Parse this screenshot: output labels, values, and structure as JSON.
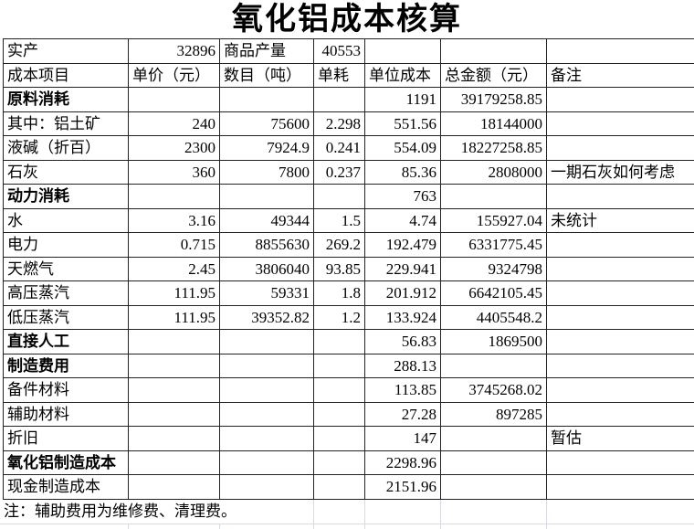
{
  "page": {
    "title": "氧化铝成本核算"
  },
  "summary_row": {
    "produced_label": "实产",
    "produced_value": "32896",
    "commodity_label": "商品产量",
    "commodity_value": "40553"
  },
  "columns": [
    "成本项目",
    "单价（元）",
    "数目（吨）",
    "单耗",
    "单位成本",
    "总金额（元）",
    "备注"
  ],
  "rows": [
    {
      "item": "原料消耗",
      "bold": true,
      "price": "",
      "qty": "",
      "use": "",
      "unit_cost": "1191",
      "total": "39179258.85",
      "note": ""
    },
    {
      "item": "其中：铝土矿",
      "bold": false,
      "price": "240",
      "qty": "75600",
      "use": "2.298",
      "unit_cost": "551.56",
      "total": "18144000",
      "note": ""
    },
    {
      "item": "液碱（折百）",
      "bold": false,
      "price": "2300",
      "qty": "7924.9",
      "use": "0.241",
      "unit_cost": "554.09",
      "total": "18227258.85",
      "note": ""
    },
    {
      "item": "石灰",
      "bold": false,
      "price": "360",
      "qty": "7800",
      "use": "0.237",
      "unit_cost": "85.36",
      "total": "2808000",
      "note": "一期石灰如何考虑"
    },
    {
      "item": "动力消耗",
      "bold": true,
      "price": "",
      "qty": "",
      "use": "",
      "unit_cost": "763",
      "total": "",
      "note": ""
    },
    {
      "item": "水",
      "bold": false,
      "price": "3.16",
      "qty": "49344",
      "use": "1.5",
      "unit_cost": "4.74",
      "total": "155927.04",
      "note": "未统计"
    },
    {
      "item": "电力",
      "bold": false,
      "price": "0.715",
      "qty": "8855630",
      "use": "269.2",
      "unit_cost": "192.479",
      "total": "6331775.45",
      "note": ""
    },
    {
      "item": "天燃气",
      "bold": false,
      "price": "2.45",
      "qty": "3806040",
      "use": "93.85",
      "unit_cost": "229.941",
      "total": "9324798",
      "note": ""
    },
    {
      "item": "高压蒸汽",
      "bold": false,
      "price": "111.95",
      "qty": "59331",
      "use": "1.8",
      "unit_cost": "201.912",
      "total": "6642105.45",
      "note": ""
    },
    {
      "item": "低压蒸汽",
      "bold": false,
      "price": "111.95",
      "qty": "39352.82",
      "use": "1.2",
      "unit_cost": "133.924",
      "total": "4405548.2",
      "note": ""
    },
    {
      "item": "直接人工",
      "bold": true,
      "price": "",
      "qty": "",
      "use": "",
      "unit_cost": "56.83",
      "total": "1869500",
      "note": ""
    },
    {
      "item": "制造费用",
      "bold": true,
      "price": "",
      "qty": "",
      "use": "",
      "unit_cost": "288.13",
      "total": "",
      "note": ""
    },
    {
      "item": "备件材料",
      "bold": false,
      "price": "",
      "qty": "",
      "use": "",
      "unit_cost": "113.85",
      "total": "3745268.02",
      "note": ""
    },
    {
      "item": "辅助材料",
      "bold": false,
      "price": "",
      "qty": "",
      "use": "",
      "unit_cost": "27.28",
      "total": "897285",
      "note": ""
    },
    {
      "item": "折旧",
      "bold": false,
      "price": "",
      "qty": "",
      "use": "",
      "unit_cost": "147",
      "total": "",
      "note": "暂估"
    },
    {
      "item": "氧化铝制造成本",
      "bold": true,
      "price": "",
      "qty": "",
      "use": "",
      "unit_cost": "2298.96",
      "total": "",
      "note": ""
    },
    {
      "item": "现金制造成本",
      "bold": false,
      "price": "",
      "qty": "",
      "use": "",
      "unit_cost": "2151.96",
      "total": "",
      "note": ""
    }
  ],
  "footnote": "注：辅助费用为维修费、清理费。"
}
